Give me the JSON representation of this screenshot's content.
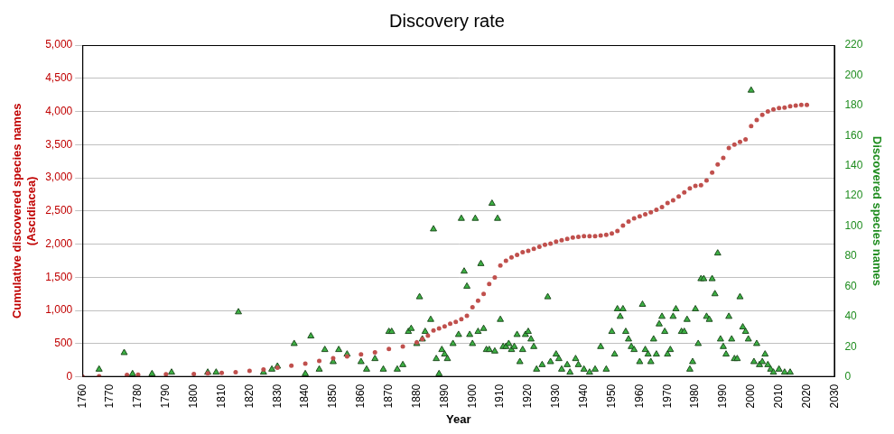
{
  "chart_data": {
    "type": "scatter",
    "title": "Discovery rate",
    "xlabel": "Year",
    "ylabel": [
      "Cumulative discovered species names",
      "(Ascidiacea)"
    ],
    "y2label": "Discovered species names",
    "xlim": [
      1760,
      2030
    ],
    "xticks": [
      1760,
      1770,
      1780,
      1790,
      1800,
      1810,
      1820,
      1830,
      1840,
      1850,
      1860,
      1870,
      1880,
      1890,
      1900,
      1910,
      1920,
      1930,
      1940,
      1950,
      1960,
      1970,
      1980,
      1990,
      2000,
      2010,
      2020,
      2030
    ],
    "ylim": [
      0,
      5000
    ],
    "yticks": [
      0,
      500,
      {
        "value": 1000,
        "label": "1,000"
      },
      {
        "value": 1500,
        "label": "1,500"
      },
      {
        "value": 2000,
        "label": "2,000"
      },
      {
        "value": 2500,
        "label": "2,500"
      },
      {
        "value": 3000,
        "label": "3,000"
      },
      {
        "value": 3500,
        "label": "3,500"
      },
      {
        "value": 4000,
        "label": "4,000"
      },
      {
        "value": 4500,
        "label": "4,500"
      },
      {
        "value": 5000,
        "label": "5,000"
      }
    ],
    "y2lim": [
      0,
      220
    ],
    "y2ticks": [
      0,
      20,
      40,
      60,
      80,
      100,
      120,
      140,
      160,
      180,
      200,
      220
    ],
    "grid": true,
    "series": [
      {
        "color": "#c0504d",
        "marker": "circle",
        "x": [
          1760,
          1766,
          1776,
          1780,
          1790,
          1800,
          1805,
          1810,
          1815,
          1820,
          1825,
          1830,
          1835,
          1840,
          1845,
          1850,
          1855,
          1860,
          1865,
          1870,
          1875,
          1880,
          1882,
          1884,
          1886,
          1888,
          1890,
          1892,
          1894,
          1896,
          1898,
          1900,
          1902,
          1904,
          1906,
          1908,
          1910,
          1912,
          1914,
          1916,
          1918,
          1920,
          1922,
          1924,
          1926,
          1928,
          1930,
          1932,
          1934,
          1936,
          1938,
          1940,
          1942,
          1944,
          1946,
          1948,
          1950,
          1952,
          1954,
          1956,
          1958,
          1960,
          1962,
          1964,
          1966,
          1968,
          1970,
          1972,
          1974,
          1976,
          1978,
          1980,
          1982,
          1984,
          1986,
          1988,
          1990,
          1992,
          1994,
          1996,
          1998,
          2000,
          2002,
          2004,
          2006,
          2008,
          2010,
          2012,
          2014,
          2016,
          2018,
          2020
        ],
        "values": [
          5,
          10,
          30,
          35,
          40,
          45,
          55,
          60,
          70,
          90,
          110,
          140,
          170,
          200,
          240,
          280,
          310,
          340,
          370,
          420,
          460,
          520,
          570,
          620,
          700,
          730,
          760,
          800,
          830,
          870,
          920,
          1050,
          1150,
          1250,
          1400,
          1500,
          1680,
          1750,
          1800,
          1840,
          1880,
          1900,
          1930,
          1960,
          1990,
          2010,
          2040,
          2060,
          2080,
          2100,
          2110,
          2120,
          2120,
          2120,
          2130,
          2140,
          2160,
          2200,
          2280,
          2340,
          2390,
          2420,
          2450,
          2480,
          2520,
          2560,
          2620,
          2660,
          2720,
          2780,
          2840,
          2880,
          2890,
          2960,
          3080,
          3200,
          3300,
          3450,
          3500,
          3540,
          3580,
          3780,
          3870,
          3950,
          4000,
          4030,
          4050,
          4060,
          4080,
          4090,
          4100,
          4100
        ]
      },
      {
        "color": "#3cb043",
        "marker": "triangle",
        "axis": "y2",
        "x": [
          1766,
          1775,
          1778,
          1785,
          1792,
          1805,
          1808,
          1816,
          1825,
          1828,
          1830,
          1836,
          1840,
          1842,
          1845,
          1847,
          1850,
          1852,
          1855,
          1860,
          1862,
          1865,
          1868,
          1870,
          1871,
          1873,
          1875,
          1877,
          1878,
          1880,
          1881,
          1882,
          1883,
          1885,
          1886,
          1887,
          1888,
          1889,
          1890,
          1891,
          1893,
          1895,
          1896,
          1897,
          1898,
          1899,
          1900,
          1901,
          1902,
          1903,
          1904,
          1905,
          1906,
          1907,
          1908,
          1909,
          1910,
          1911,
          1912,
          1913,
          1914,
          1915,
          1916,
          1917,
          1918,
          1919,
          1920,
          1921,
          1922,
          1923,
          1925,
          1927,
          1928,
          1930,
          1931,
          1932,
          1934,
          1935,
          1937,
          1938,
          1940,
          1942,
          1944,
          1946,
          1948,
          1950,
          1951,
          1952,
          1953,
          1954,
          1955,
          1956,
          1957,
          1958,
          1960,
          1961,
          1962,
          1963,
          1964,
          1965,
          1966,
          1967,
          1968,
          1969,
          1970,
          1971,
          1972,
          1973,
          1975,
          1976,
          1977,
          1978,
          1979,
          1980,
          1981,
          1982,
          1983,
          1984,
          1985,
          1986,
          1987,
          1988,
          1989,
          1990,
          1991,
          1992,
          1993,
          1994,
          1995,
          1996,
          1997,
          1998,
          1999,
          2000,
          2001,
          2002,
          2003,
          2004,
          2005,
          2006,
          2007,
          2008,
          2010,
          2012,
          2014
        ],
        "values": [
          5,
          16,
          2,
          2,
          3,
          3,
          3,
          43,
          3,
          5,
          7,
          22,
          2,
          27,
          5,
          18,
          10,
          18,
          15,
          10,
          5,
          12,
          5,
          30,
          30,
          5,
          8,
          30,
          32,
          22,
          53,
          25,
          30,
          38,
          98,
          12,
          2,
          18,
          15,
          12,
          22,
          28,
          105,
          70,
          60,
          28,
          22,
          105,
          30,
          75,
          32,
          18,
          18,
          115,
          17,
          105,
          38,
          20,
          20,
          22,
          18,
          20,
          28,
          10,
          18,
          28,
          30,
          25,
          20,
          5,
          8,
          53,
          10,
          15,
          12,
          5,
          8,
          3,
          12,
          8,
          5,
          3,
          5,
          20,
          5,
          30,
          15,
          45,
          40,
          45,
          30,
          25,
          20,
          18,
          10,
          48,
          18,
          15,
          10,
          25,
          15,
          35,
          40,
          30,
          15,
          18,
          40,
          45,
          30,
          30,
          38,
          5,
          10,
          45,
          22,
          65,
          65,
          40,
          38,
          65,
          55,
          82,
          25,
          20,
          15,
          40,
          25,
          12,
          12,
          53,
          33,
          30,
          25,
          190,
          10,
          22,
          8,
          10,
          15,
          8,
          5,
          3,
          5,
          3,
          3
        ]
      }
    ]
  }
}
